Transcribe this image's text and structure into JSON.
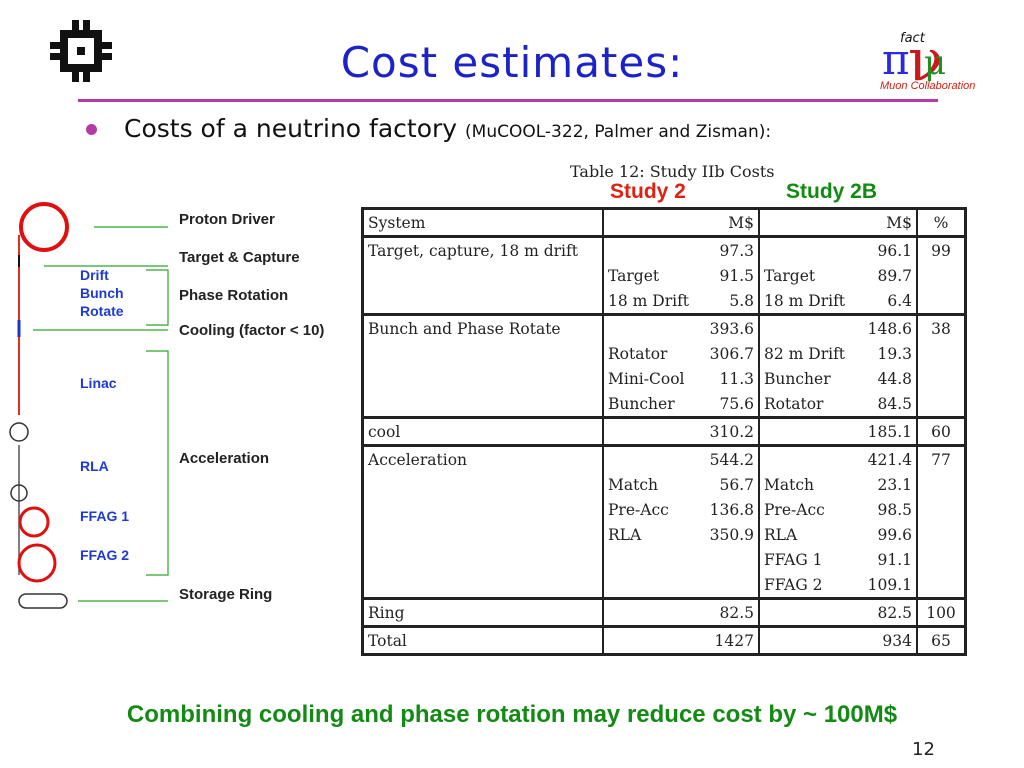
{
  "title": "Cost estimates:",
  "bullet": {
    "main": "Costs of a neutrino factory",
    "sub": "(MuCOOL-322, Palmer and Zisman):"
  },
  "table": {
    "caption": "Table 12: Study IIb Costs",
    "study2_label": "Study 2",
    "study2b_label": "Study 2B",
    "header": [
      "System",
      "M$",
      "M$",
      "%"
    ],
    "sections": [
      {
        "system": "Target, capture, 18 m drift",
        "s2_total": "97.3",
        "s2b_total": "96.1",
        "pct": "99",
        "s2_items": [
          [
            "Target",
            "91.5"
          ],
          [
            "18 m Drift",
            "5.8"
          ]
        ],
        "s2b_items": [
          [
            "Target",
            "89.7"
          ],
          [
            "18 m Drift",
            "6.4"
          ]
        ]
      },
      {
        "system": "Bunch and Phase Rotate",
        "s2_total": "393.6",
        "s2b_total": "148.6",
        "pct": "38",
        "s2_items": [
          [
            "Rotator",
            "306.7"
          ],
          [
            "Mini-Cool",
            "11.3"
          ],
          [
            "Buncher",
            "75.6"
          ]
        ],
        "s2b_items": [
          [
            "82 m Drift",
            "19.3"
          ],
          [
            "Buncher",
            "44.8"
          ],
          [
            "Rotator",
            "84.5"
          ]
        ]
      },
      {
        "system": "cool",
        "s2_total": "310.2",
        "s2b_total": "185.1",
        "pct": "60",
        "s2_items": [],
        "s2b_items": []
      },
      {
        "system": "Acceleration",
        "s2_total": "544.2",
        "s2b_total": "421.4",
        "pct": "77",
        "s2_items": [
          [
            "Match",
            "56.7"
          ],
          [
            "Pre-Acc",
            "136.8"
          ],
          [
            "RLA",
            "350.9"
          ]
        ],
        "s2b_items": [
          [
            "Match",
            "23.1"
          ],
          [
            "Pre-Acc",
            "98.5"
          ],
          [
            "RLA",
            "99.6"
          ],
          [
            "FFAG 1",
            "91.1"
          ],
          [
            "FFAG 2",
            "109.1"
          ]
        ]
      },
      {
        "system": "Ring",
        "s2_total": "82.5",
        "s2b_total": "82.5",
        "pct": "100",
        "s2_items": [],
        "s2b_items": []
      },
      {
        "system": "Total",
        "s2_total": "1427",
        "s2b_total": "934",
        "pct": "65",
        "s2_items": [],
        "s2b_items": []
      }
    ]
  },
  "diagram": {
    "black_labels": [
      "Proton Driver",
      "Target & Capture",
      "Phase Rotation",
      "Cooling (factor < 10)",
      "Acceleration",
      "Storage Ring"
    ],
    "blue_labels": [
      "Drift",
      "Bunch",
      "Rotate",
      "Linac",
      "RLA",
      "FFAG 1",
      "FFAG 2"
    ]
  },
  "logo_right": {
    "fact": "fact",
    "caption": "Muon Collaboration"
  },
  "footer": "Combining cooling and phase rotation may reduce cost by ~ 100M$",
  "page_number": "12",
  "colors": {
    "title": "#1a22c8",
    "accent_rule": "#b43aa6",
    "study2": "#e02010",
    "study2b": "#138a13",
    "footer": "#138a13",
    "diagram_blue": "#1d3ad2"
  }
}
